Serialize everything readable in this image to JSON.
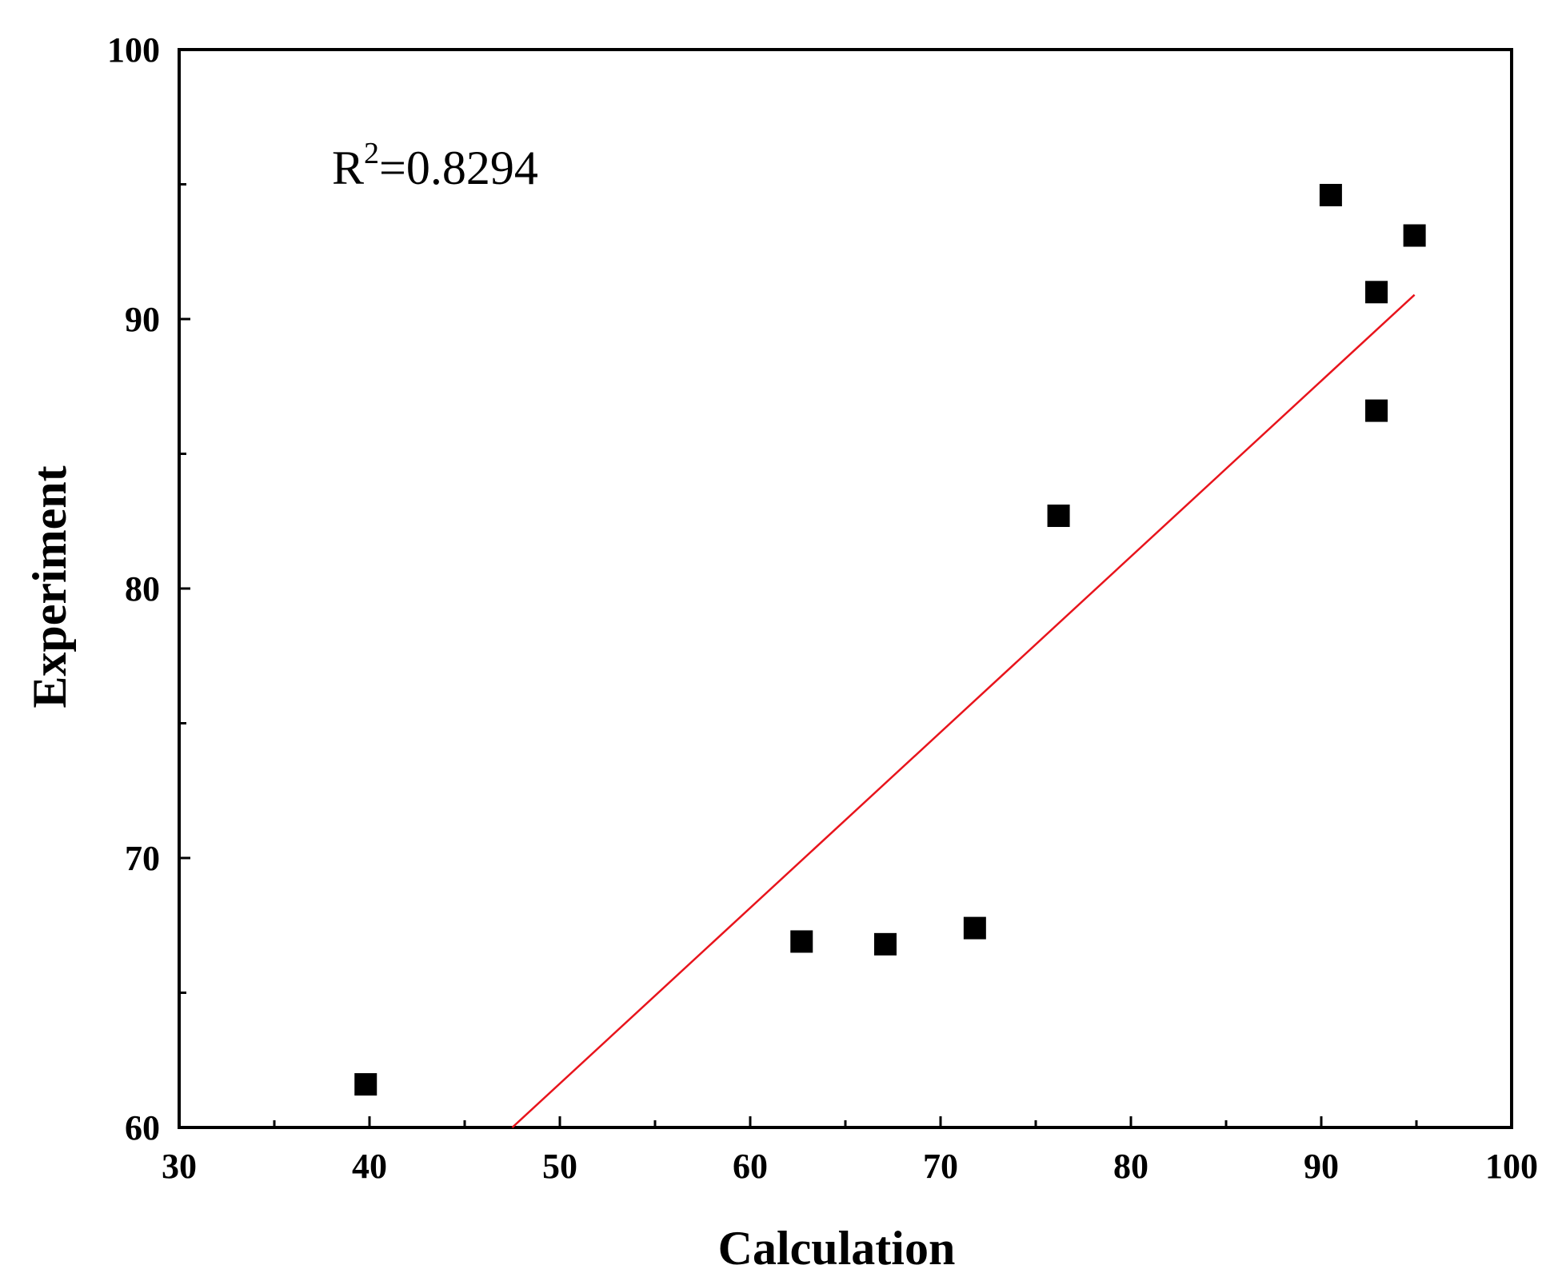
{
  "chart_data": {
    "type": "scatter",
    "title": "",
    "xlabel": "Calculation",
    "ylabel": "Experiment",
    "xlim": [
      30,
      100
    ],
    "ylim": [
      60,
      100
    ],
    "x_ticks": [
      "30",
      "40",
      "50",
      "60",
      "70",
      "80",
      "90",
      "100"
    ],
    "y_ticks": [
      "60",
      "70",
      "80",
      "90",
      "100"
    ],
    "x_minor_step": 5,
    "y_minor_step": 5,
    "grid": false,
    "series": [
      {
        "name": "data",
        "marker": "square",
        "color": "#000000",
        "points": [
          {
            "x": 39.8,
            "y": 61.6
          },
          {
            "x": 62.7,
            "y": 66.9
          },
          {
            "x": 67.1,
            "y": 66.8
          },
          {
            "x": 71.8,
            "y": 67.4
          },
          {
            "x": 76.2,
            "y": 82.7
          },
          {
            "x": 90.5,
            "y": 94.6
          },
          {
            "x": 92.9,
            "y": 91.0
          },
          {
            "x": 92.9,
            "y": 86.6
          },
          {
            "x": 94.9,
            "y": 93.1
          }
        ]
      }
    ],
    "fit_line": {
      "name": "linear fit",
      "color": "#e8141c",
      "x": [
        47.5,
        94.9
      ],
      "y": [
        60.0,
        90.9
      ]
    },
    "annotation": {
      "base": "R",
      "superscript": "2",
      "text": "=0.8294"
    }
  }
}
